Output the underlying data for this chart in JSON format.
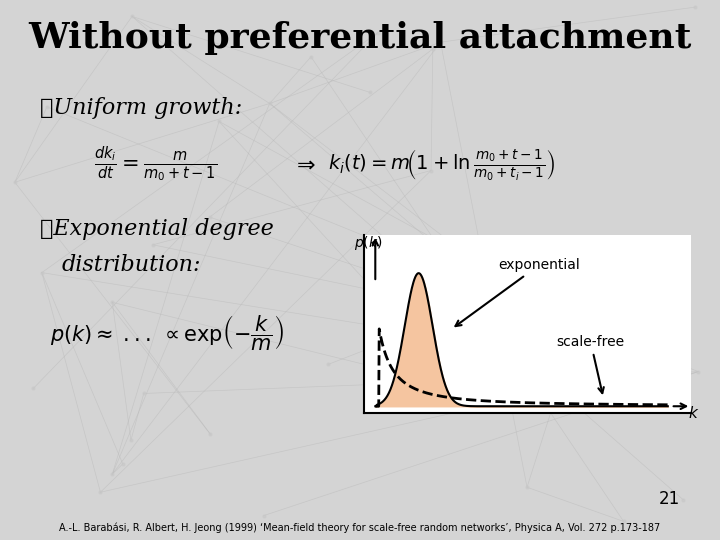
{
  "title": "Without preferential attachment",
  "title_fontsize": 26,
  "title_fontweight": "bold",
  "bg_color": "#d4d4d4",
  "text_color": "#000000",
  "page_number": "21",
  "footnote": "A.-L. Barabási, R. Albert, H. Jeong (1999) ‘Mean-field theory for scale-free random networks’, Physica A, Vol. 272 p.173-187",
  "inset_bg": "#ffffff",
  "exp_fill_color": "#f5c5a0",
  "exp_line_color": "#000000",
  "sf_line_color": "#000000",
  "label_exponential": "exponential",
  "label_scalefree": "scale-free"
}
